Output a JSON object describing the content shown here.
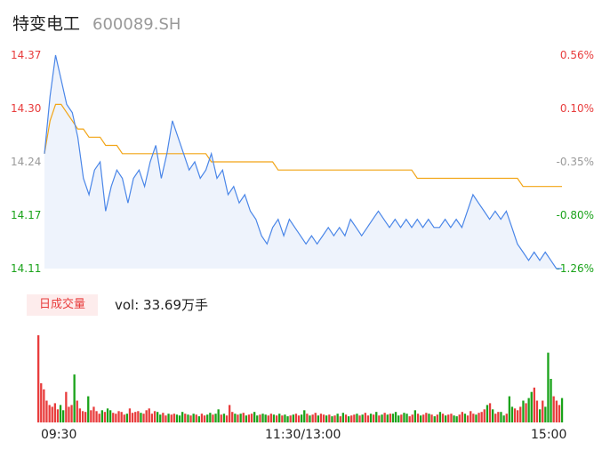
{
  "header": {
    "name": "特变电工",
    "code": "600089.SH"
  },
  "colors": {
    "up": "#e83c3c",
    "down": "#1aa31a",
    "neutral": "#999999",
    "price": "#4a86e8",
    "avg": "#f2a516",
    "area": "#eef3fc"
  },
  "chart_data": [
    {
      "type": "line",
      "title": "",
      "y_left_ticks": [
        "14.37",
        "14.30",
        "14.24",
        "14.17",
        "14.11"
      ],
      "y_right_ticks": [
        "0.56%",
        "0.10%",
        "-0.35%",
        "-0.80%",
        "-1.26%"
      ],
      "ylim": [
        14.11,
        14.37
      ],
      "prev_close": 14.29,
      "x_ticks": [
        "09:30",
        "11:30/13:00",
        "15:00"
      ],
      "series": [
        {
          "name": "price",
          "values": [
            14.25,
            14.32,
            14.37,
            14.34,
            14.31,
            14.3,
            14.27,
            14.22,
            14.2,
            14.23,
            14.24,
            14.18,
            14.21,
            14.23,
            14.22,
            14.19,
            14.22,
            14.23,
            14.21,
            14.24,
            14.26,
            14.22,
            14.25,
            14.29,
            14.27,
            14.25,
            14.23,
            14.24,
            14.22,
            14.23,
            14.25,
            14.22,
            14.23,
            14.2,
            14.21,
            14.19,
            14.2,
            14.18,
            14.17,
            14.15,
            14.14,
            14.16,
            14.17,
            14.15,
            14.17,
            14.16,
            14.15,
            14.14,
            14.15,
            14.14,
            14.15,
            14.16,
            14.15,
            14.16,
            14.15,
            14.17,
            14.16,
            14.15,
            14.16,
            14.17,
            14.18,
            14.17,
            14.16,
            14.17,
            14.16,
            14.17,
            14.16,
            14.17,
            14.16,
            14.17,
            14.16,
            14.16,
            14.17,
            14.16,
            14.17,
            14.16,
            14.18,
            14.2,
            14.19,
            14.18,
            14.17,
            14.18,
            14.17,
            14.18,
            14.16,
            14.14,
            14.13,
            14.12,
            14.13,
            14.12,
            14.13,
            14.12,
            14.11,
            14.11
          ]
        },
        {
          "name": "avg",
          "values": [
            14.25,
            14.29,
            14.31,
            14.31,
            14.3,
            14.29,
            14.28,
            14.28,
            14.27,
            14.27,
            14.27,
            14.26,
            14.26,
            14.26,
            14.25,
            14.25,
            14.25,
            14.25,
            14.25,
            14.25,
            14.25,
            14.25,
            14.25,
            14.25,
            14.25,
            14.25,
            14.25,
            14.25,
            14.25,
            14.25,
            14.24,
            14.24,
            14.24,
            14.24,
            14.24,
            14.24,
            14.24,
            14.24,
            14.24,
            14.24,
            14.24,
            14.24,
            14.23,
            14.23,
            14.23,
            14.23,
            14.23,
            14.23,
            14.23,
            14.23,
            14.23,
            14.23,
            14.23,
            14.23,
            14.23,
            14.23,
            14.23,
            14.23,
            14.23,
            14.23,
            14.23,
            14.23,
            14.23,
            14.23,
            14.23,
            14.23,
            14.23,
            14.22,
            14.22,
            14.22,
            14.22,
            14.22,
            14.22,
            14.22,
            14.22,
            14.22,
            14.22,
            14.22,
            14.22,
            14.22,
            14.22,
            14.22,
            14.22,
            14.22,
            14.22,
            14.22,
            14.21,
            14.21,
            14.21,
            14.21,
            14.21,
            14.21,
            14.21,
            14.21
          ]
        }
      ]
    },
    {
      "type": "bar",
      "title": "",
      "label": "日成交量",
      "volume_text": "vol: 33.69万手",
      "values": [
        100,
        45,
        38,
        25,
        20,
        18,
        22,
        15,
        20,
        14,
        35,
        18,
        20,
        55,
        25,
        16,
        13,
        12,
        30,
        14,
        18,
        13,
        10,
        14,
        12,
        16,
        14,
        11,
        10,
        13,
        12,
        9,
        10,
        16,
        11,
        12,
        13,
        11,
        10,
        14,
        16,
        10,
        13,
        12,
        9,
        11,
        8,
        10,
        9,
        10,
        9,
        8,
        12,
        10,
        9,
        8,
        10,
        9,
        7,
        10,
        8,
        9,
        11,
        9,
        10,
        15,
        9,
        10,
        8,
        20,
        12,
        10,
        9,
        10,
        11,
        8,
        9,
        10,
        12,
        8,
        9,
        10,
        9,
        8,
        10,
        9,
        8,
        10,
        8,
        9,
        7,
        8,
        9,
        10,
        8,
        9,
        14,
        10,
        8,
        9,
        11,
        8,
        10,
        9,
        8,
        9,
        7,
        8,
        10,
        7,
        11,
        9,
        7,
        8,
        9,
        10,
        8,
        9,
        11,
        8,
        10,
        9,
        12,
        8,
        9,
        11,
        9,
        10,
        10,
        12,
        8,
        9,
        11,
        10,
        7,
        9,
        14,
        10,
        8,
        9,
        11,
        10,
        9,
        7,
        9,
        12,
        10,
        8,
        9,
        10,
        8,
        7,
        9,
        12,
        10,
        8,
        13,
        10,
        9,
        11,
        12,
        15,
        20,
        22,
        15,
        10,
        12,
        12,
        8,
        10,
        30,
        18,
        16,
        14,
        18,
        25,
        22,
        28,
        35,
        40,
        25,
        15,
        25,
        18,
        80,
        50,
        30,
        25,
        20,
        28
      ],
      "dir": [
        1,
        1,
        1,
        1,
        1,
        1,
        1,
        1,
        0,
        0,
        1,
        1,
        1,
        0,
        1,
        1,
        1,
        1,
        0,
        1,
        1,
        1,
        1,
        0,
        1,
        0,
        0,
        1,
        1,
        1,
        1,
        1,
        0,
        1,
        1,
        1,
        1,
        0,
        1,
        1,
        1,
        1,
        1,
        0,
        0,
        1,
        1,
        0,
        1,
        1,
        0,
        0,
        0,
        1,
        0,
        1,
        0,
        1,
        0,
        1,
        1,
        0,
        0,
        1,
        0,
        0,
        1,
        0,
        1,
        1,
        1,
        0,
        1,
        0,
        1,
        0,
        1,
        1,
        0,
        0,
        1,
        0,
        0,
        1,
        1,
        0,
        1,
        0,
        1,
        0,
        0,
        1,
        0,
        1,
        1,
        0,
        0,
        1,
        0,
        1,
        1,
        0,
        1,
        1,
        0,
        1,
        0,
        1,
        0,
        1,
        0,
        1,
        0,
        1,
        1,
        0,
        1,
        0,
        1,
        1,
        0,
        1,
        0,
        1,
        0,
        1,
        0,
        1,
        0,
        0,
        0,
        1,
        0,
        0,
        1,
        1,
        0,
        1,
        0,
        1,
        1,
        0,
        1,
        0,
        1,
        0,
        1,
        0,
        1,
        1,
        0,
        0,
        1,
        1,
        0,
        1,
        1,
        1,
        0,
        1,
        1,
        1,
        0,
        1,
        0,
        1,
        1,
        0,
        0,
        1,
        0,
        0,
        1,
        1,
        1,
        0,
        1,
        0,
        0,
        1,
        1,
        0,
        1,
        0,
        0,
        0,
        1,
        1,
        1,
        0,
        1,
        1,
        1,
        1
      ]
    }
  ]
}
